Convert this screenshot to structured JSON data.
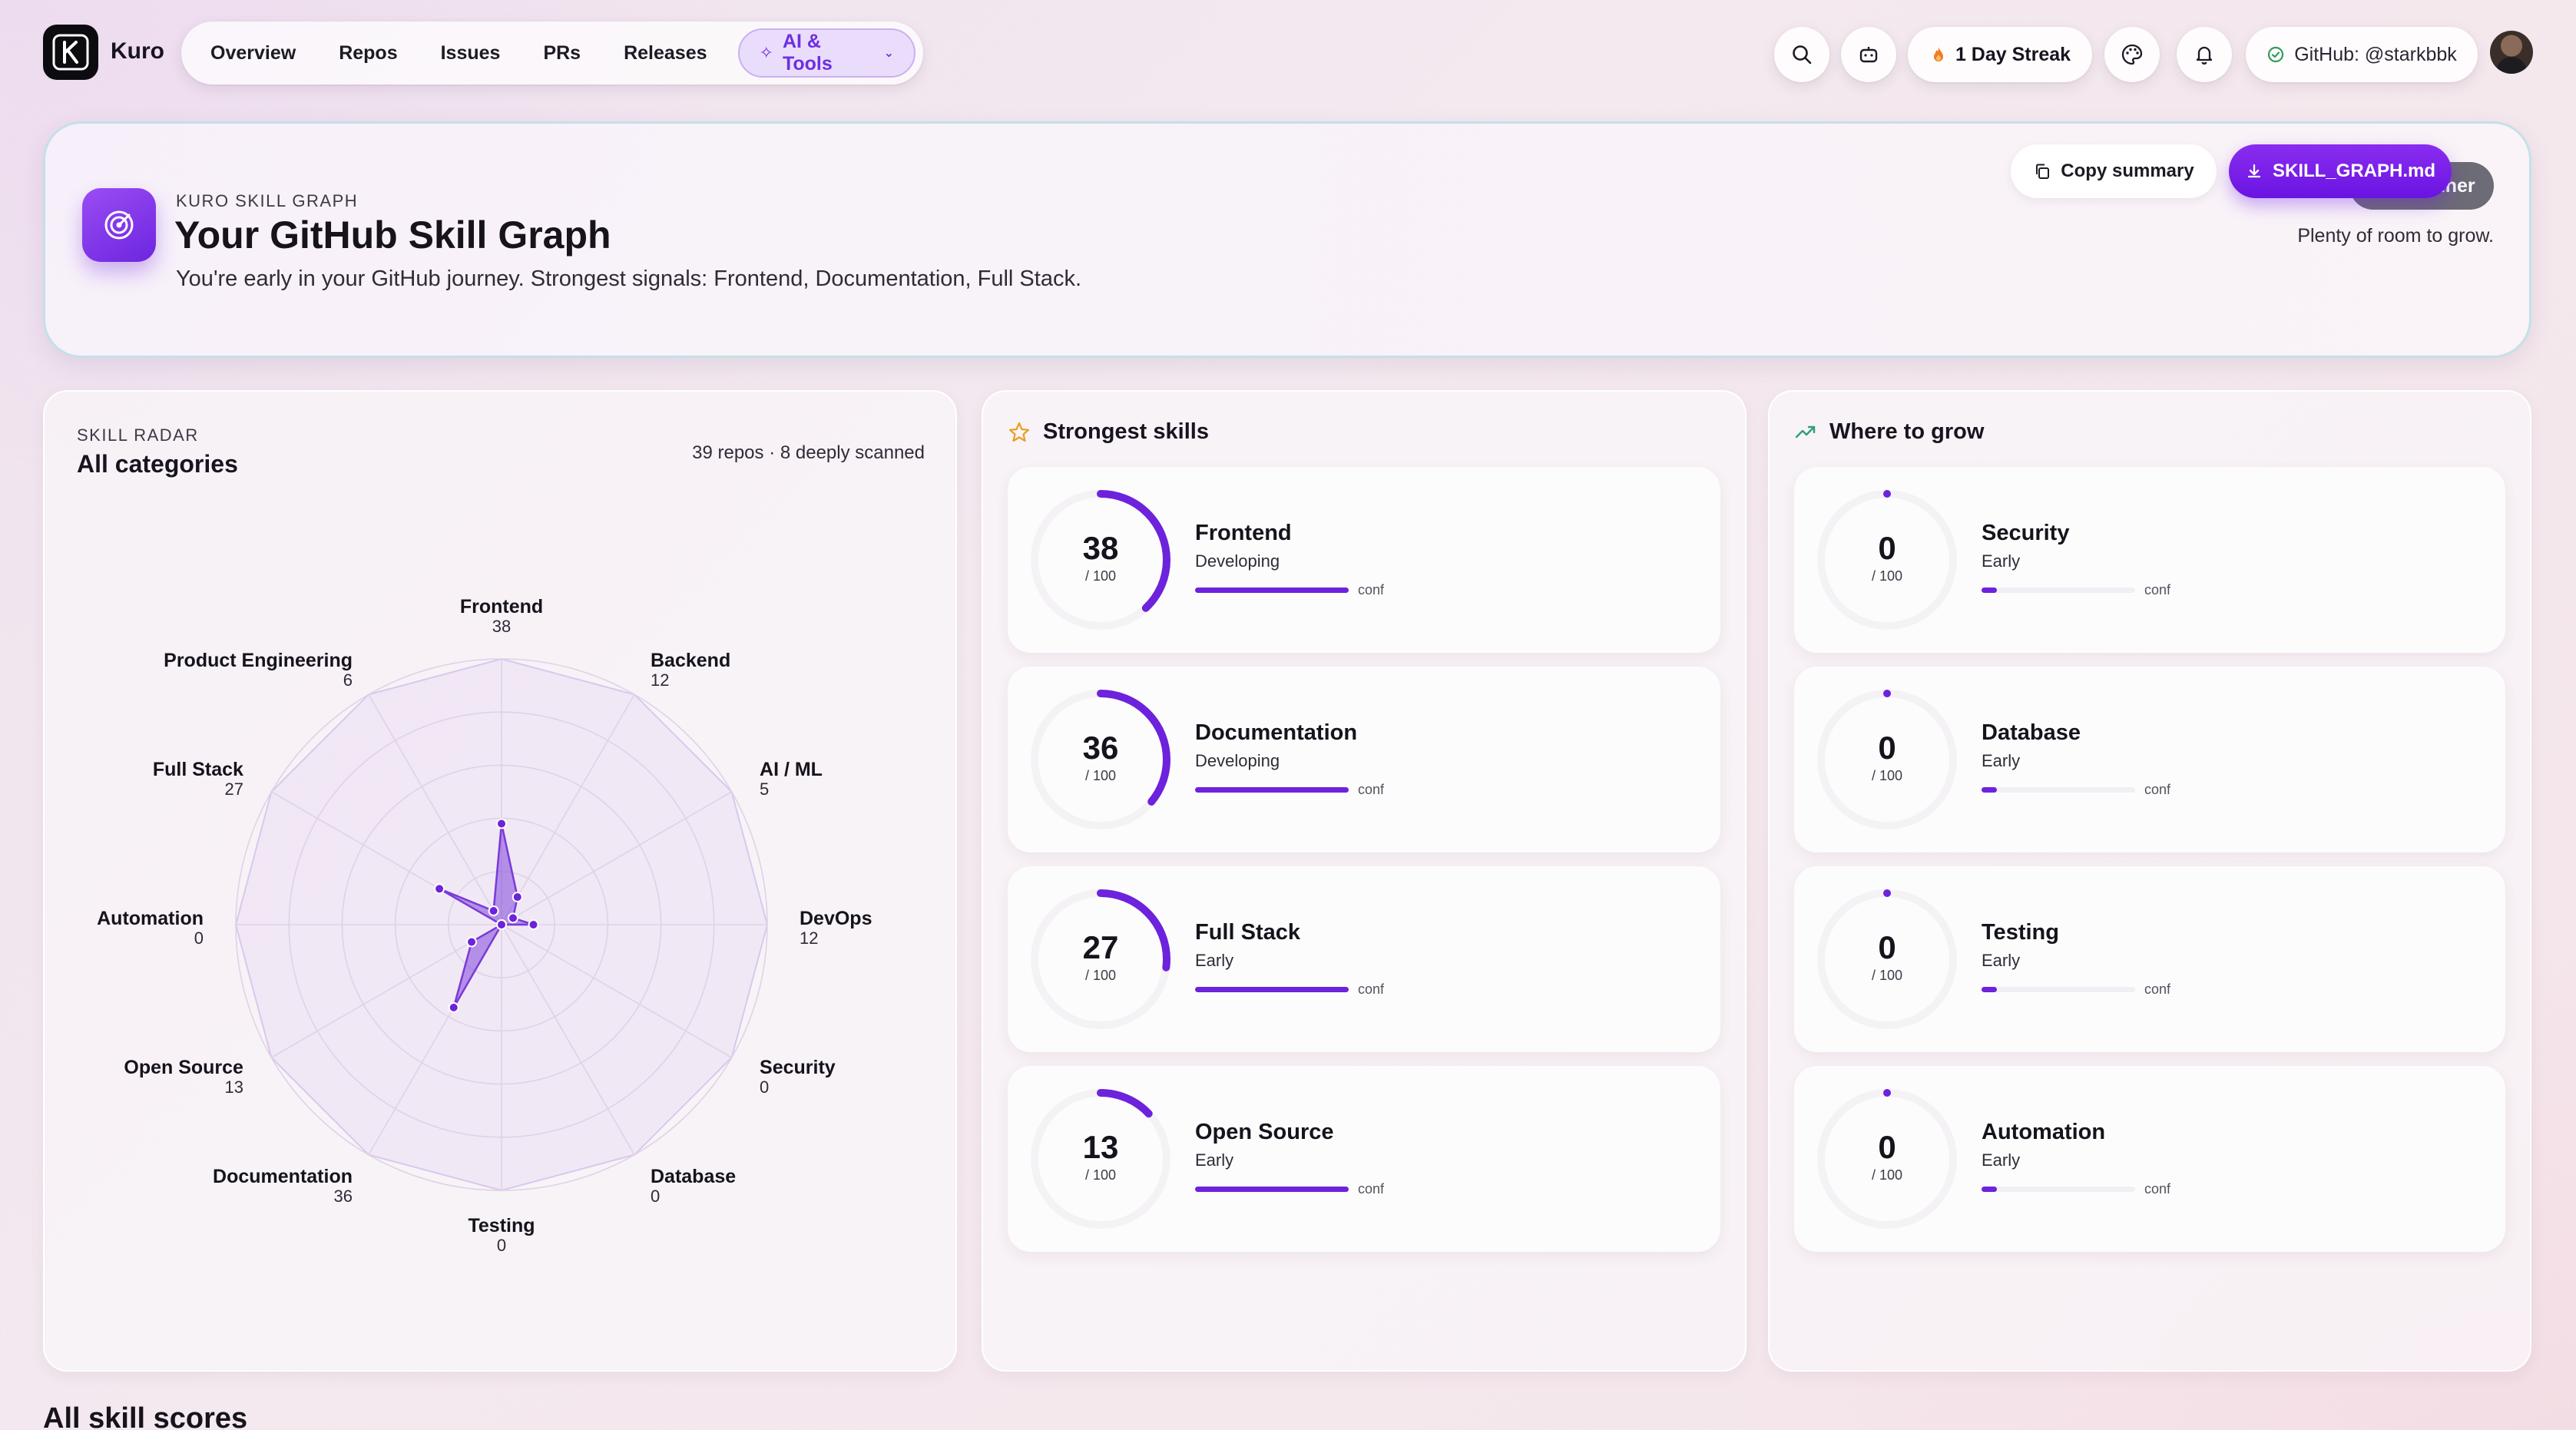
{
  "app": {
    "name": "Kuro",
    "logo_letter": "K"
  },
  "nav": {
    "items": [
      {
        "label": "Overview"
      },
      {
        "label": "Repos"
      },
      {
        "label": "Issues"
      },
      {
        "label": "PRs"
      },
      {
        "label": "Releases"
      }
    ],
    "active": {
      "label": "AI & Tools"
    }
  },
  "topbar": {
    "streak": "1 Day Streak",
    "github": "GitHub: @starkbbk"
  },
  "hero": {
    "eyebrow": "KURO SKILL GRAPH",
    "title": "Your GitHub Skill Graph",
    "subtitle": "You're early in your GitHub journey. Strongest signals: Frontend, Documentation, Full Stack.",
    "level": "Beginner",
    "level_note": "Plenty of room to grow.",
    "copy_label": "Copy summary",
    "download_label": "SKILL_GRAPH.md"
  },
  "radar": {
    "eyebrow": "SKILL RADAR",
    "title": "All categories",
    "meta": "39 repos · 8 deeply scanned",
    "max": 100,
    "axes": [
      {
        "name": "Frontend",
        "value": 38
      },
      {
        "name": "Backend",
        "value": 12
      },
      {
        "name": "AI / ML",
        "value": 5
      },
      {
        "name": "DevOps",
        "value": 12
      },
      {
        "name": "Security",
        "value": 0
      },
      {
        "name": "Database",
        "value": 0
      },
      {
        "name": "Testing",
        "value": 0
      },
      {
        "name": "Documentation",
        "value": 36
      },
      {
        "name": "Open Source",
        "value": 13
      },
      {
        "name": "Automation",
        "value": 0
      },
      {
        "name": "Full Stack",
        "value": 27
      },
      {
        "name": "Product Engineering",
        "value": 6
      }
    ]
  },
  "strongest": {
    "title": "Strongest skills",
    "items": [
      {
        "name": "Frontend",
        "score": 38,
        "of": "/ 100",
        "level": "Developing",
        "conf_label": "conf",
        "confidence": 1.0
      },
      {
        "name": "Documentation",
        "score": 36,
        "of": "/ 100",
        "level": "Developing",
        "conf_label": "conf",
        "confidence": 1.0
      },
      {
        "name": "Full Stack",
        "score": 27,
        "of": "/ 100",
        "level": "Early",
        "conf_label": "conf",
        "confidence": 1.0
      },
      {
        "name": "Open Source",
        "score": 13,
        "of": "/ 100",
        "level": "Early",
        "conf_label": "conf",
        "confidence": 1.0
      }
    ]
  },
  "grow": {
    "title": "Where to grow",
    "items": [
      {
        "name": "Security",
        "score": 0,
        "of": "/ 100",
        "level": "Early",
        "conf_label": "conf",
        "confidence": 0.1
      },
      {
        "name": "Database",
        "score": 0,
        "of": "/ 100",
        "level": "Early",
        "conf_label": "conf",
        "confidence": 0.1
      },
      {
        "name": "Testing",
        "score": 0,
        "of": "/ 100",
        "level": "Early",
        "conf_label": "conf",
        "confidence": 0.1
      },
      {
        "name": "Automation",
        "score": 0,
        "of": "/ 100",
        "level": "Early",
        "conf_label": "conf",
        "confidence": 0.1
      }
    ]
  },
  "section": {
    "all_scores_title": "All skill scores"
  },
  "colors": {
    "accent": "#6d22dc",
    "accent_light": "#eaddfb",
    "streak_flame": "#f07a2a",
    "verified": "#2f9e5a"
  }
}
